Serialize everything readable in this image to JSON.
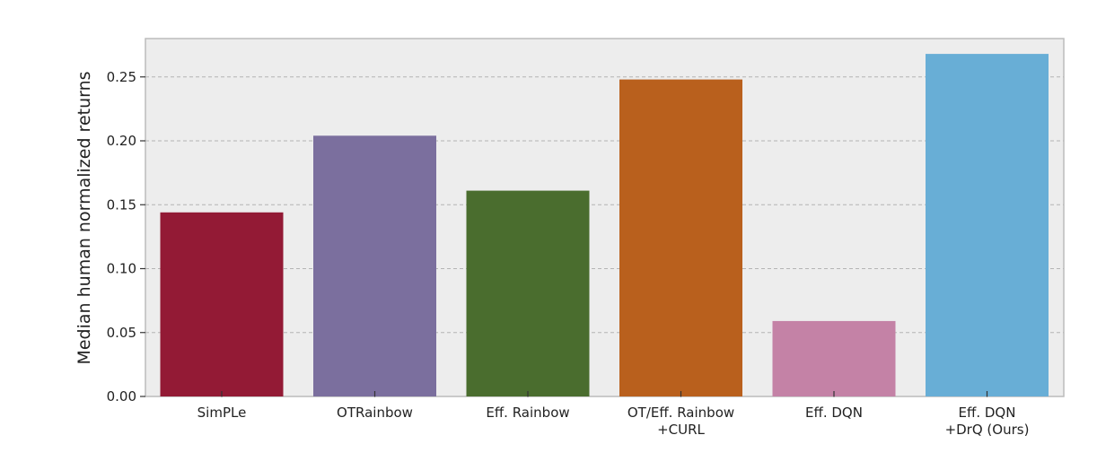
{
  "chart_data": {
    "type": "bar",
    "ylabel": "Median human normalized returns",
    "xlabel": "",
    "ylim": [
      0,
      0.28
    ],
    "yticks": [
      "0.00",
      "0.05",
      "0.10",
      "0.15",
      "0.20",
      "0.25"
    ],
    "grid": true,
    "categories": [
      [
        "SimPLe"
      ],
      [
        "OTRainbow"
      ],
      [
        "Eff. Rainbow"
      ],
      [
        "OT/Eff. Rainbow",
        "+CURL"
      ],
      [
        "Eff. DQN"
      ],
      [
        "Eff. DQN",
        "+DrQ (Ours)"
      ]
    ],
    "values": [
      0.144,
      0.204,
      0.161,
      0.248,
      0.059,
      0.268
    ],
    "colors": [
      "#931a35",
      "#7b6f9e",
      "#4a6d2e",
      "#b9601d",
      "#c482a6",
      "#68aed6"
    ],
    "background": "#ededed",
    "gridColor": "#b4b4b4"
  }
}
